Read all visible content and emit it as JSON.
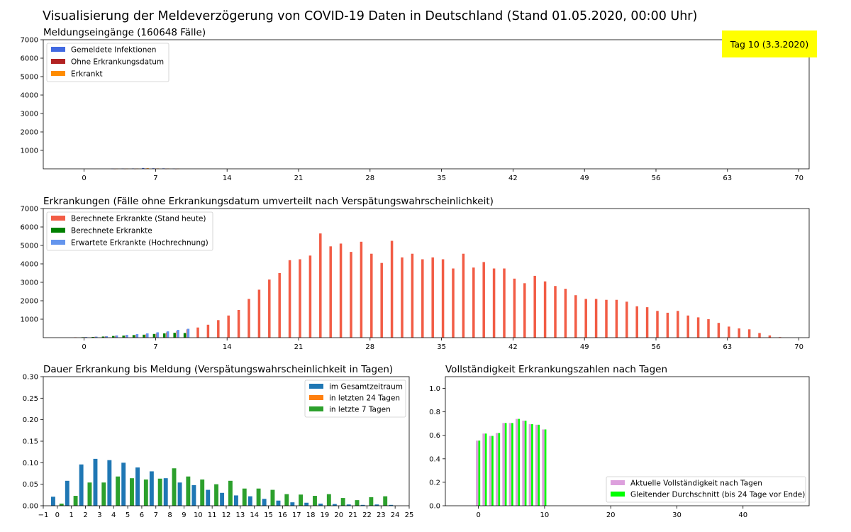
{
  "title": "Visualisierung der Meldeverzögerung von COVID-19 Daten in Deutschland (Stand 01.05.2020, 00:00 Uhr)",
  "badge": {
    "text": "Tag 10 (3.3.2020)",
    "color": "#ffff00"
  },
  "chart_data": [
    {
      "id": "meldungen",
      "type": "bar",
      "title": "Meldungseingänge (160648 Fälle)",
      "xlim": [
        -4,
        71
      ],
      "ylim": [
        0,
        7000
      ],
      "xticks": [
        0,
        7,
        14,
        21,
        28,
        35,
        42,
        49,
        56,
        63,
        70
      ],
      "yticks": [
        1000,
        2000,
        3000,
        4000,
        5000,
        6000,
        7000
      ],
      "legend_position": "top-left",
      "x": [
        3,
        4,
        5,
        6,
        7,
        8,
        9
      ],
      "series": [
        {
          "name": "Gemeldete Infektionen",
          "color": "#4169e1",
          "values": [
            10,
            15,
            20,
            45,
            30,
            25,
            12
          ]
        },
        {
          "name": "Ohne Erkrankungsdatum",
          "color": "#b22222",
          "values": [
            3,
            5,
            6,
            12,
            9,
            7,
            3
          ]
        },
        {
          "name": "Erkrankt",
          "color": "#ff8c00",
          "values": [
            7,
            10,
            14,
            33,
            21,
            18,
            9
          ]
        }
      ]
    },
    {
      "id": "erkrankungen",
      "type": "bar",
      "title": "Erkrankungen (Fälle ohne Erkrankungsdatum umverteilt nach Verspätungswahrscheinlichkeit)",
      "xlim": [
        -4,
        71
      ],
      "ylim": [
        0,
        7000
      ],
      "xticks": [
        0,
        7,
        14,
        21,
        28,
        35,
        42,
        49,
        56,
        63,
        70
      ],
      "yticks": [
        1000,
        2000,
        3000,
        4000,
        5000,
        6000,
        7000
      ],
      "legend_position": "top-left",
      "series": [
        {
          "name": "Berechnete Erkrankte (Stand heute)",
          "color": "#f25c45",
          "x": [
            -1,
            0,
            1,
            2,
            3,
            4,
            5,
            6,
            7,
            8,
            9,
            10,
            11,
            12,
            13,
            14,
            15,
            16,
            17,
            18,
            19,
            20,
            21,
            22,
            23,
            24,
            25,
            26,
            27,
            28,
            29,
            30,
            31,
            32,
            33,
            34,
            35,
            36,
            37,
            38,
            39,
            40,
            41,
            42,
            43,
            44,
            45,
            46,
            47,
            48,
            49,
            50,
            51,
            52,
            53,
            54,
            55,
            56,
            57,
            58,
            59,
            60,
            61,
            62,
            63,
            64,
            65,
            66,
            67,
            68
          ],
          "values": [
            20,
            30,
            50,
            70,
            100,
            120,
            150,
            180,
            220,
            280,
            350,
            450,
            550,
            700,
            950,
            1200,
            1500,
            2100,
            2600,
            3150,
            3500,
            4200,
            4250,
            4450,
            5650,
            4950,
            5100,
            4650,
            5200,
            4550,
            4050,
            5250,
            4350,
            4550,
            4250,
            4350,
            4250,
            3750,
            4550,
            3800,
            4100,
            3750,
            3750,
            3200,
            2950,
            3350,
            3050,
            2800,
            2650,
            2300,
            2100,
            2100,
            2050,
            2050,
            1950,
            1700,
            1650,
            1450,
            1350,
            1450,
            1200,
            1100,
            1000,
            800,
            600,
            500,
            450,
            250,
            120,
            30
          ]
        },
        {
          "name": "Berechnete Erkrankte",
          "color": "#008000",
          "x": [
            0,
            1,
            2,
            3,
            4,
            5,
            6,
            7,
            8,
            9,
            10
          ],
          "values": [
            25,
            40,
            60,
            90,
            110,
            140,
            160,
            200,
            230,
            260,
            250
          ]
        },
        {
          "name": "Erwartete Erkrankte (Hochrechnung)",
          "color": "#6495ed",
          "x": [
            0,
            1,
            2,
            3,
            4,
            5,
            6,
            7,
            8,
            9,
            10
          ],
          "values": [
            35,
            55,
            80,
            120,
            150,
            190,
            230,
            290,
            340,
            420,
            480
          ]
        }
      ]
    },
    {
      "id": "dauer",
      "type": "bar",
      "title": "Dauer Erkrankung bis Meldung (Verspätungswahrscheinlichkeit in Tagen)",
      "xlim": [
        -1,
        25
      ],
      "ylim": [
        0,
        0.3
      ],
      "xticks": [
        -1,
        0,
        1,
        2,
        3,
        4,
        5,
        6,
        7,
        8,
        9,
        10,
        11,
        12,
        13,
        14,
        15,
        16,
        17,
        18,
        19,
        20,
        21,
        22,
        23,
        24,
        25
      ],
      "xtick_labels": [
        "−1",
        "0",
        "1",
        "2",
        "3",
        "4",
        "5",
        "6",
        "7",
        "8",
        "9",
        "10",
        "11",
        "12",
        "13",
        "14",
        "15",
        "16",
        "17",
        "18",
        "19",
        "20",
        "21",
        "22",
        "23",
        "24",
        "25"
      ],
      "yticks": [
        0.0,
        0.05,
        0.1,
        0.15,
        0.2,
        0.25,
        0.3
      ],
      "ytick_labels": [
        "0.00",
        "0.05",
        "0.10",
        "0.15",
        "0.20",
        "0.25",
        "0.30"
      ],
      "legend_position": "top-right",
      "x": [
        0,
        1,
        2,
        3,
        4,
        5,
        6,
        7,
        8,
        9,
        10,
        11,
        12,
        13,
        14,
        15,
        16,
        17,
        18,
        19,
        20,
        21,
        22,
        23,
        24
      ],
      "series": [
        {
          "name": "im Gesamtzeitraum",
          "color": "#1f77b4",
          "values": [
            0.021,
            0.058,
            0.096,
            0.109,
            0.106,
            0.1,
            0.089,
            0.08,
            0.064,
            0.054,
            0.048,
            0.037,
            0.03,
            0.024,
            0.022,
            0.016,
            0.012,
            0.008,
            0.007,
            0.005,
            0.004,
            0.003,
            0.002,
            0.003,
            0.002
          ]
        },
        {
          "name": "in letzten 24 Tagen",
          "color": "#ff7f0e",
          "values": [
            0,
            0,
            0,
            0,
            0,
            0,
            0,
            0,
            0,
            0,
            0,
            0,
            0,
            0,
            0,
            0,
            0,
            0,
            0,
            0,
            0,
            0,
            0,
            0,
            0
          ]
        },
        {
          "name": "in letzte 7 Tagen",
          "color": "#2ca02c",
          "values": [
            0.005,
            0.023,
            0.054,
            0.054,
            0.068,
            0.064,
            0.061,
            0.063,
            0.087,
            0.068,
            0.061,
            0.05,
            0.058,
            0.04,
            0.04,
            0.037,
            0.027,
            0.026,
            0.023,
            0.027,
            0.018,
            0.013,
            0.02,
            0.022,
            0.0
          ]
        }
      ]
    },
    {
      "id": "vollstaendigkeit",
      "type": "bar",
      "title": "Vollständigkeit Erkrankungszahlen nach Tagen",
      "xlim": [
        -5,
        50
      ],
      "ylim": [
        0,
        1.1
      ],
      "xticks": [
        0,
        10,
        20,
        30,
        40
      ],
      "yticks": [
        0.0,
        0.2,
        0.4,
        0.6,
        0.8,
        1.0
      ],
      "ytick_labels": [
        "0.0",
        "0.2",
        "0.4",
        "0.6",
        "0.8",
        "1.0"
      ],
      "legend_position": "bottom-right",
      "x": [
        0,
        1,
        2,
        3,
        4,
        5,
        6,
        7,
        8,
        9,
        10
      ],
      "series": [
        {
          "name": "Aktuelle Vollständigkeit nach Tagen",
          "color": "#dda0dd",
          "values": [
            0.555,
            0.615,
            0.595,
            0.62,
            0.705,
            0.705,
            0.74,
            0.725,
            0.695,
            0.69,
            0.65
          ]
        },
        {
          "name": "Gleitender Durchschnitt (bis 24 Tage vor Ende)",
          "color": "#00ff00",
          "values": [
            0.555,
            0.615,
            0.595,
            0.62,
            0.705,
            0.705,
            0.74,
            0.725,
            0.695,
            0.69,
            0.65
          ]
        }
      ]
    }
  ]
}
